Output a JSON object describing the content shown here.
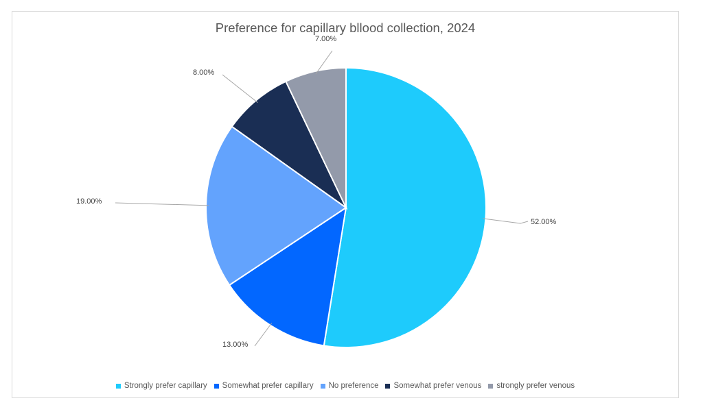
{
  "chart_data": {
    "type": "pie",
    "title": "Preference for capillary bllood collection, 2024",
    "categories": [
      "Strongly prefer capillary",
      "Somewhat prefer capillary",
      "No preference",
      "Somewhat prefer venous",
      "strongly prefer venous"
    ],
    "values": [
      52,
      13,
      19,
      8,
      7
    ],
    "data_labels": [
      "52.00%",
      "13.00%",
      "19.00%",
      "8.00%",
      "7.00%"
    ],
    "colors": [
      "#1ECBFC",
      "#0267FF",
      "#63A3FD",
      "#1A2E54",
      "#939AAA"
    ],
    "legend_position": "bottom",
    "start_angle": "12 o'clock",
    "direction": "clockwise"
  }
}
